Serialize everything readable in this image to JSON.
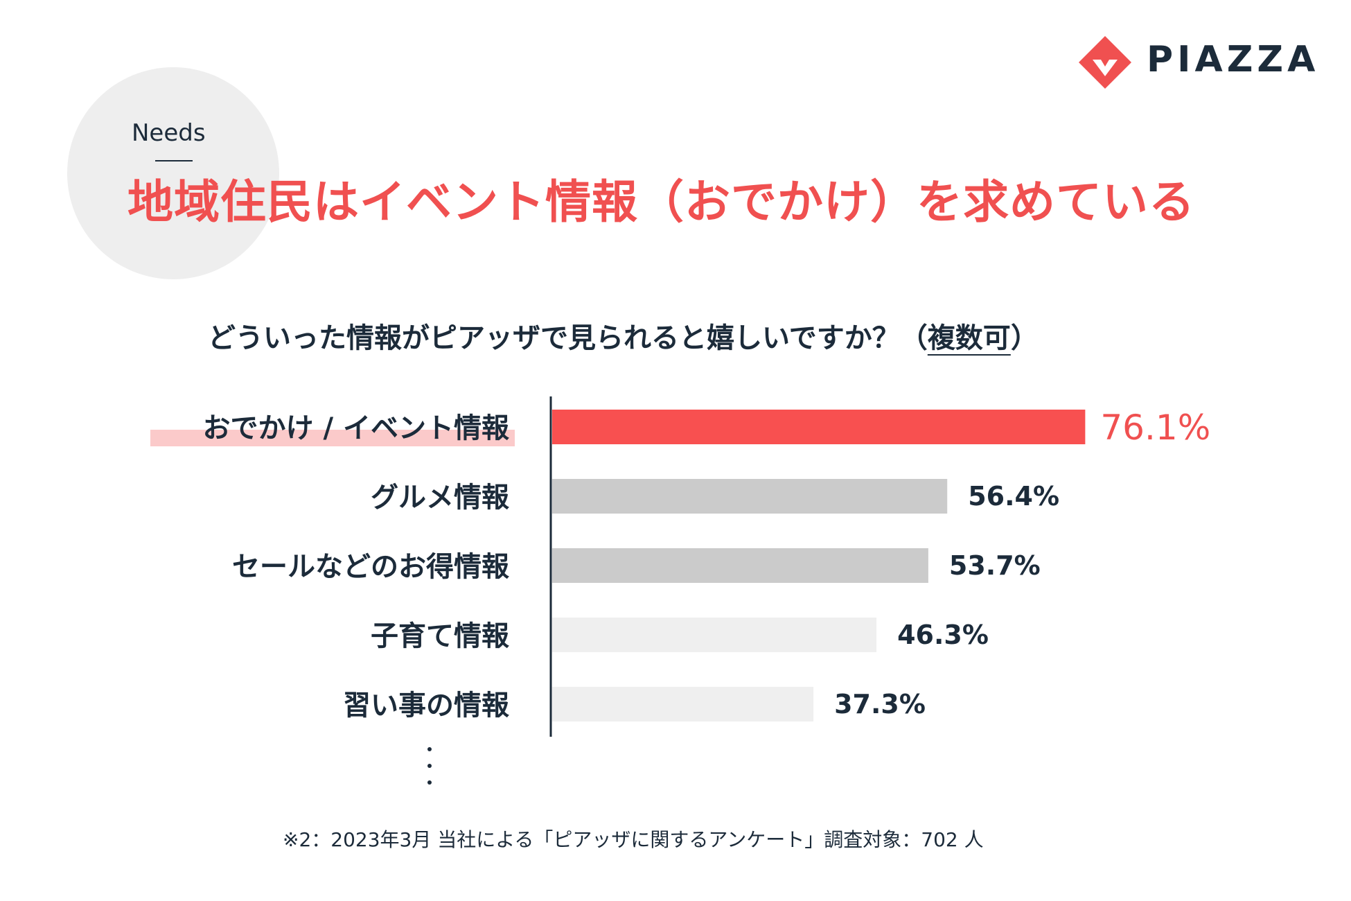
{
  "brand": {
    "name": "PIAZZA",
    "accent_color": "#f05050",
    "text_color": "#1c2b3a",
    "logo_icon": "diamond-check-icon"
  },
  "section": {
    "label": "Needs",
    "headline": "地域住民はイベント情報（おでかけ）を求めている"
  },
  "question": {
    "text": "どういった情報がピアッザで見られると嬉しいですか？（",
    "emphasis": "複数可",
    "close": "）"
  },
  "chart_data": {
    "type": "bar",
    "orientation": "horizontal",
    "unit": "%",
    "categories": [
      "おでかけ / イベント情報",
      "グルメ情報",
      "セールなどのお得情報",
      "子育て情報",
      "習い事の情報"
    ],
    "values": [
      76.1,
      56.4,
      53.7,
      46.3,
      37.3
    ],
    "value_labels": [
      "76.1%",
      "56.4%",
      "53.7%",
      "46.3%",
      "37.3%"
    ],
    "bar_colors": [
      "#f85050",
      "#cbcbcb",
      "#cbcbcb",
      "#efefef",
      "#efefef"
    ],
    "highlight_color": "#fbcaca",
    "xlim": [
      0,
      100
    ],
    "grid": false,
    "legend": "none"
  },
  "footnote": "※2：2023年3月 当社による「ピアッザに関するアンケート」調査対象：702 人"
}
